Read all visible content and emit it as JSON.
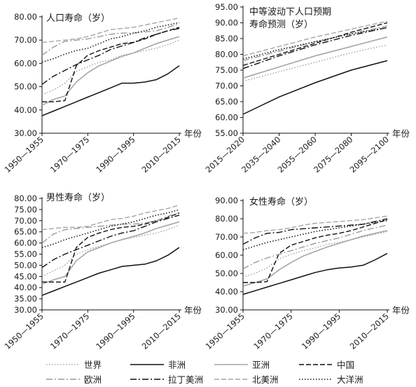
{
  "chart_data": [
    {
      "type": "line",
      "title": "人口寿命（岁）",
      "xunit": "年份",
      "x_ticks": [
        "1950—1955",
        "1970—1975",
        "1990—1995",
        "2010—2015"
      ],
      "y_ticks": [
        "30.00",
        "40.00",
        "50.00",
        "60.00",
        "70.00",
        "80.00"
      ],
      "ylim": [
        30,
        80
      ],
      "x": [
        1952.5,
        1957.5,
        1962.5,
        1967.5,
        1972.5,
        1977.5,
        1982.5,
        1987.5,
        1992.5,
        1997.5,
        2002.5,
        2007.5,
        2012.5
      ],
      "series": [
        {
          "key": "world",
          "values": [
            46.5,
            48.5,
            51.5,
            56.5,
            58.5,
            60.5,
            61.5,
            63.5,
            64.5,
            65.5,
            66.5,
            68.0,
            70.0
          ]
        },
        {
          "key": "africa",
          "values": [
            37.5,
            39.5,
            41.5,
            43.5,
            45.5,
            47.5,
            49.5,
            51.5,
            51.5,
            52.0,
            53.0,
            55.5,
            59.0
          ]
        },
        {
          "key": "asia",
          "values": [
            42.0,
            44.5,
            46.0,
            52.0,
            56.0,
            59.0,
            61.0,
            63.0,
            64.5,
            66.5,
            68.5,
            70.0,
            71.5
          ]
        },
        {
          "key": "china",
          "values": [
            43.5,
            43.5,
            44.0,
            59.0,
            63.5,
            65.5,
            67.0,
            68.5,
            69.0,
            70.5,
            72.5,
            74.0,
            75.5
          ]
        },
        {
          "key": "europe",
          "values": [
            63.5,
            67.0,
            69.5,
            70.0,
            70.5,
            71.5,
            72.5,
            73.0,
            73.0,
            73.5,
            74.0,
            75.5,
            77.0
          ]
        },
        {
          "key": "latam",
          "values": [
            51.0,
            54.5,
            57.0,
            59.5,
            61.5,
            63.5,
            66.0,
            67.5,
            69.0,
            71.0,
            72.5,
            74.0,
            75.0
          ]
        },
        {
          "key": "namerica",
          "values": [
            69.0,
            69.5,
            70.0,
            70.5,
            71.5,
            73.0,
            74.5,
            75.0,
            75.5,
            76.5,
            77.5,
            78.5,
            79.5
          ]
        },
        {
          "key": "oceania",
          "values": [
            60.5,
            62.0,
            64.0,
            65.5,
            66.5,
            68.5,
            70.5,
            71.5,
            73.0,
            74.0,
            75.5,
            76.5,
            77.5
          ]
        }
      ]
    },
    {
      "type": "line",
      "title": "中等波动下人口预期",
      "title2": "寿命预测（岁）",
      "xunit": "年份",
      "x_ticks": [
        "2015—2020",
        "2035—2040",
        "2055—2060",
        "2075—2080",
        "2095—2100"
      ],
      "y_ticks": [
        "55.00",
        "60.00",
        "65.00",
        "70.00",
        "75.00",
        "80.00",
        "85.00",
        "90.00",
        "95.00"
      ],
      "ylim": [
        55,
        95
      ],
      "x": [
        2017.5,
        2037.5,
        2057.5,
        2077.5,
        2097.5
      ],
      "series": [
        {
          "key": "world",
          "values": [
            71.5,
            74.5,
            77.5,
            80.5,
            83.0
          ]
        },
        {
          "key": "africa",
          "values": [
            61.0,
            66.5,
            71.0,
            75.0,
            78.0
          ]
        },
        {
          "key": "asia",
          "values": [
            72.5,
            76.0,
            79.5,
            82.5,
            85.5
          ]
        },
        {
          "key": "china",
          "values": [
            76.5,
            80.0,
            83.5,
            87.0,
            90.0
          ]
        },
        {
          "key": "europe",
          "values": [
            78.0,
            81.0,
            84.0,
            86.5,
            89.0
          ]
        },
        {
          "key": "latam",
          "values": [
            75.5,
            79.5,
            83.0,
            86.0,
            88.5
          ]
        },
        {
          "key": "namerica",
          "values": [
            79.5,
            82.5,
            85.5,
            88.0,
            90.5
          ]
        },
        {
          "key": "oceania",
          "values": [
            78.5,
            81.5,
            84.0,
            86.5,
            88.5
          ]
        }
      ]
    },
    {
      "type": "line",
      "title": "男性寿命（岁）",
      "xunit": "年份",
      "x_ticks": [
        "1950—1955",
        "1970—1975",
        "1990—1995",
        "2010—2015"
      ],
      "y_ticks": [
        "30.00",
        "35.00",
        "40.00",
        "45.00",
        "50.00",
        "55.00",
        "60.00",
        "65.00",
        "70.00",
        "75.00",
        "80.00"
      ],
      "ylim": [
        30,
        80
      ],
      "x": [
        1952.5,
        1957.5,
        1962.5,
        1967.5,
        1972.5,
        1977.5,
        1982.5,
        1987.5,
        1992.5,
        1997.5,
        2002.5,
        2007.5,
        2012.5
      ],
      "series": [
        {
          "key": "world",
          "values": [
            45.0,
            47.5,
            50.0,
            55.0,
            57.0,
            58.5,
            60.0,
            61.5,
            62.5,
            63.5,
            64.5,
            66.0,
            68.0
          ]
        },
        {
          "key": "africa",
          "values": [
            36.5,
            38.5,
            40.5,
            42.5,
            44.5,
            46.5,
            48.0,
            49.5,
            50.0,
            50.5,
            52.0,
            54.5,
            58.0
          ]
        },
        {
          "key": "asia",
          "values": [
            41.5,
            43.5,
            45.0,
            52.0,
            56.0,
            58.0,
            60.0,
            61.5,
            63.0,
            64.5,
            66.5,
            68.0,
            69.5
          ]
        },
        {
          "key": "china",
          "values": [
            42.5,
            42.5,
            42.5,
            58.0,
            62.5,
            64.5,
            66.0,
            67.0,
            67.5,
            68.5,
            70.0,
            71.5,
            73.5
          ]
        },
        {
          "key": "europe",
          "values": [
            60.0,
            64.0,
            66.0,
            66.5,
            67.0,
            67.5,
            68.0,
            68.5,
            68.5,
            69.0,
            70.0,
            72.0,
            73.5
          ]
        },
        {
          "key": "latam",
          "values": [
            49.0,
            52.5,
            55.0,
            57.0,
            59.0,
            61.0,
            63.0,
            64.5,
            65.5,
            67.5,
            69.5,
            71.0,
            72.5
          ]
        },
        {
          "key": "namerica",
          "values": [
            66.0,
            66.5,
            67.0,
            67.0,
            67.5,
            69.0,
            70.5,
            71.0,
            72.0,
            73.5,
            74.5,
            75.5,
            77.0
          ]
        },
        {
          "key": "oceania",
          "values": [
            58.0,
            59.5,
            61.5,
            63.0,
            64.5,
            66.0,
            67.5,
            68.5,
            69.5,
            71.0,
            72.5,
            73.5,
            75.0
          ]
        }
      ]
    },
    {
      "type": "line",
      "title": "女性寿命（岁）",
      "xunit": "年份",
      "x_ticks": [
        "1950—1955",
        "1970—1975",
        "1990—1995",
        "2010—2015"
      ],
      "y_ticks": [
        "30.00",
        "40.00",
        "50.00",
        "60.00",
        "70.00",
        "80.00",
        "90.00"
      ],
      "ylim": [
        30,
        90
      ],
      "x": [
        1952.5,
        1957.5,
        1962.5,
        1967.5,
        1972.5,
        1977.5,
        1982.5,
        1987.5,
        1992.5,
        1997.5,
        2002.5,
        2007.5,
        2012.5
      ],
      "series": [
        {
          "key": "world",
          "values": [
            48.0,
            50.0,
            53.0,
            58.0,
            60.5,
            62.5,
            64.0,
            66.0,
            67.0,
            68.5,
            70.0,
            71.5,
            73.0
          ]
        },
        {
          "key": "africa",
          "values": [
            38.5,
            40.5,
            42.5,
            44.5,
            46.5,
            48.5,
            50.5,
            52.0,
            53.0,
            53.5,
            54.5,
            57.5,
            61.0
          ]
        },
        {
          "key": "asia",
          "values": [
            43.0,
            45.0,
            47.0,
            52.0,
            56.0,
            59.5,
            62.0,
            64.5,
            66.5,
            68.5,
            70.5,
            72.0,
            73.5
          ]
        },
        {
          "key": "china",
          "values": [
            45.0,
            45.0,
            45.5,
            61.0,
            65.5,
            67.5,
            69.5,
            71.0,
            72.0,
            73.5,
            75.5,
            77.5,
            79.5
          ]
        },
        {
          "key": "europe",
          "values": [
            52.5,
            56.0,
            58.5,
            60.5,
            62.5,
            64.5,
            66.5,
            68.0,
            69.5,
            71.5,
            73.5,
            75.0,
            76.5
          ]
        },
        {
          "key": "latam",
          "values": [
            66.0,
            69.5,
            72.0,
            72.5,
            74.0,
            74.5,
            75.0,
            75.5,
            76.0,
            76.5,
            77.0,
            78.5,
            80.0
          ]
        },
        {
          "key": "namerica",
          "values": [
            72.0,
            72.5,
            73.5,
            74.0,
            75.0,
            76.5,
            77.5,
            78.0,
            78.5,
            79.0,
            79.5,
            80.5,
            81.5
          ]
        },
        {
          "key": "oceania",
          "values": [
            63.0,
            65.0,
            67.0,
            68.5,
            70.0,
            71.5,
            73.0,
            74.0,
            75.0,
            76.0,
            77.0,
            78.0,
            79.0
          ]
        }
      ]
    }
  ],
  "legend": [
    {
      "key": "world",
      "label": "世界"
    },
    {
      "key": "africa",
      "label": "非洲"
    },
    {
      "key": "asia",
      "label": "亚洲"
    },
    {
      "key": "china",
      "label": "中国"
    },
    {
      "key": "europe",
      "label": "欧洲"
    },
    {
      "key": "latam",
      "label": "拉丁美洲"
    },
    {
      "key": "namerica",
      "label": "北美洲"
    },
    {
      "key": "oceania",
      "label": "大洋洲"
    }
  ],
  "styles": {
    "world": {
      "color": "#999999",
      "dash": "1.5,2.5",
      "width": 1.3
    },
    "africa": {
      "color": "#111111",
      "dash": "",
      "width": 1.5
    },
    "asia": {
      "color": "#a6a6a6",
      "dash": "",
      "width": 1.6
    },
    "china": {
      "color": "#111111",
      "dash": "7,3",
      "width": 1.4
    },
    "europe": {
      "color": "#9a9a9a",
      "dash": "9,3,2,3",
      "width": 1.4
    },
    "latam": {
      "color": "#111111",
      "dash": "9,3,2,3",
      "width": 1.4
    },
    "namerica": {
      "color": "#a6a6a6",
      "dash": "7,3",
      "width": 1.4
    },
    "oceania": {
      "color": "#111111",
      "dash": "1.5,2.5",
      "width": 1.5
    }
  }
}
